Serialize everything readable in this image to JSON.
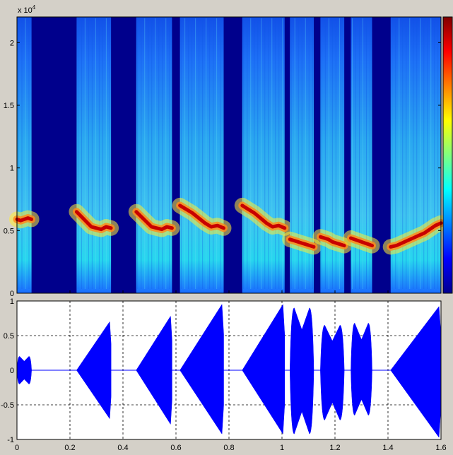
{
  "chart_data": [
    {
      "type": "heatmap",
      "title": "",
      "xlabel": "",
      "ylabel": "",
      "y_exponent_label": "x 10",
      "y_exponent": "4",
      "ylim": [
        0,
        22050
      ],
      "xlim": [
        0,
        1.6
      ],
      "yticks": [
        0,
        0.5,
        1,
        1.5,
        2
      ],
      "ytick_labels": [
        "0",
        "0.5",
        "1",
        "1.5",
        "2"
      ],
      "colormap": "jet",
      "colorbar": "right",
      "background_color": "#00008c",
      "segments": [
        {
          "start": 0.0,
          "end": 0.055,
          "freq": [
            5900,
            5800,
            5900,
            6000,
            5900
          ]
        },
        {
          "start": 0.225,
          "end": 0.355,
          "freq": [
            6500,
            6100,
            5700,
            5300,
            5200,
            5100,
            5300,
            5200
          ]
        },
        {
          "start": 0.45,
          "end": 0.585,
          "freq": [
            6500,
            6100,
            5700,
            5300,
            5200,
            5100,
            5300,
            5200
          ]
        },
        {
          "start": 0.615,
          "end": 0.78,
          "freq": [
            7000,
            6700,
            6400,
            6000,
            5600,
            5300,
            5400,
            5200
          ]
        },
        {
          "start": 0.85,
          "end": 1.01,
          "freq": [
            7000,
            6700,
            6400,
            6000,
            5600,
            5300,
            5400,
            5200
          ]
        },
        {
          "start": 1.03,
          "end": 1.12,
          "freq": [
            4300,
            4200,
            4100,
            4000,
            3900,
            3800,
            3700
          ]
        },
        {
          "start": 1.145,
          "end": 1.235,
          "freq": [
            4500,
            4400,
            4300,
            4100,
            4000,
            3900,
            3800
          ]
        },
        {
          "start": 1.26,
          "end": 1.34,
          "freq": [
            4400,
            4300,
            4200,
            4100,
            4000,
            3900,
            3800
          ]
        },
        {
          "start": 1.41,
          "end": 1.6,
          "freq": [
            3700,
            3800,
            4000,
            4200,
            4400,
            4600,
            4800,
            5100,
            5400,
            5600
          ]
        }
      ]
    },
    {
      "type": "area",
      "title": "",
      "xlabel": "",
      "ylabel": "",
      "xlim": [
        0,
        1.6
      ],
      "ylim": [
        -1,
        1
      ],
      "xticks": [
        0,
        0.2,
        0.4,
        0.6,
        0.8,
        1,
        1.2,
        1.4,
        1.6
      ],
      "xtick_labels": [
        "0",
        "0.2",
        "0.4",
        "0.6",
        "0.8",
        "1",
        "1.2",
        "1.4",
        "1.6"
      ],
      "yticks": [
        -1,
        -0.5,
        0,
        0.5,
        1
      ],
      "ytick_labels": [
        "-1",
        "-0.5",
        "0",
        "0.5",
        "1"
      ],
      "grid": true,
      "color": "#0000ff",
      "envelope": [
        {
          "start": 0.0,
          "end": 0.055,
          "shape": "double",
          "peak_pos": 0.2,
          "peak_neg": 0.2
        },
        {
          "start": 0.225,
          "end": 0.355,
          "shape": "ramp",
          "peak_pos": 0.7,
          "peak_neg": 0.7
        },
        {
          "start": 0.45,
          "end": 0.585,
          "shape": "ramp",
          "peak_pos": 0.78,
          "peak_neg": 0.78
        },
        {
          "start": 0.615,
          "end": 0.78,
          "shape": "ramp",
          "peak_pos": 0.95,
          "peak_neg": 0.92
        },
        {
          "start": 0.85,
          "end": 1.01,
          "shape": "ramp",
          "peak_pos": 0.95,
          "peak_neg": 0.92
        },
        {
          "start": 1.03,
          "end": 1.12,
          "shape": "double",
          "peak_pos": 0.9,
          "peak_neg": 0.92
        },
        {
          "start": 1.145,
          "end": 1.235,
          "shape": "double",
          "peak_pos": 0.65,
          "peak_neg": 0.72
        },
        {
          "start": 1.26,
          "end": 1.34,
          "shape": "double",
          "peak_pos": 0.68,
          "peak_neg": 0.65
        },
        {
          "start": 1.41,
          "end": 1.6,
          "shape": "ramp",
          "peak_pos": 0.92,
          "peak_neg": 0.97
        }
      ]
    }
  ]
}
